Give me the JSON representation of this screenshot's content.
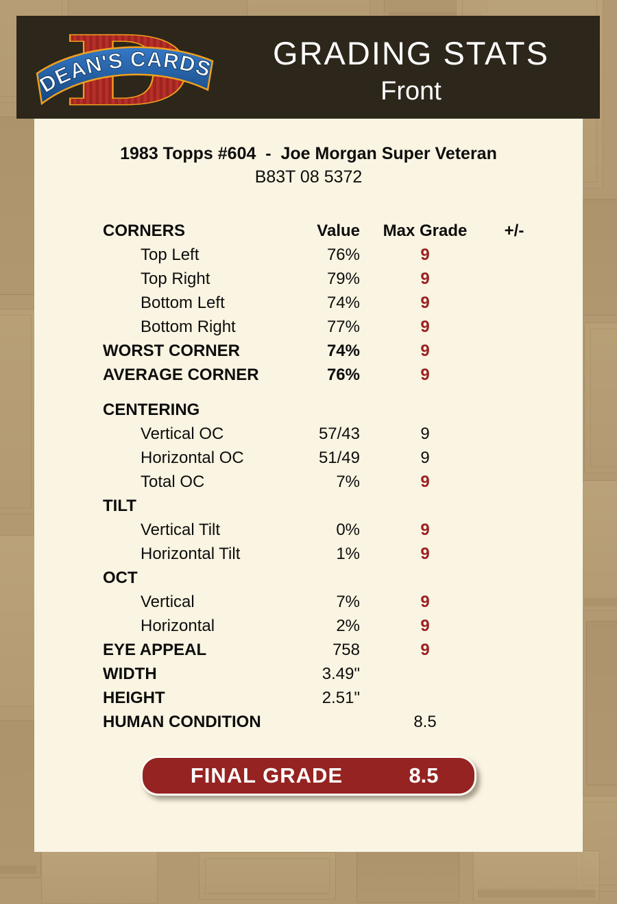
{
  "header": {
    "logo": {
      "d": "D",
      "banner": "DEAN'S CARDS"
    },
    "title": "GRADING STATS",
    "side": "Front"
  },
  "card": {
    "title": "1983 Topps #604  -  Joe Morgan Super Veteran",
    "code": "B83T 08 5372"
  },
  "table": {
    "header": {
      "label": "CORNERS",
      "value": "Value",
      "grade": "Max Grade",
      "plus_minus": "+/-"
    },
    "rows": [
      {
        "label": "Top Left",
        "value": "76%",
        "grade": "9",
        "indent": true,
        "grade_red": true
      },
      {
        "label": "Top Right",
        "value": "79%",
        "grade": "9",
        "indent": true,
        "grade_red": true
      },
      {
        "label": "Bottom Left",
        "value": "74%",
        "grade": "9",
        "indent": true,
        "grade_red": true
      },
      {
        "label": "Bottom Right",
        "value": "77%",
        "grade": "9",
        "indent": true,
        "grade_red": true
      },
      {
        "label": "WORST CORNER",
        "value": "74%",
        "grade": "9",
        "label_bold": true,
        "value_bold": true,
        "grade_red": true
      },
      {
        "label": "AVERAGE CORNER",
        "value": "76%",
        "grade": "9",
        "label_bold": true,
        "value_bold": true,
        "grade_red": true
      },
      {
        "spacer": true
      },
      {
        "label": "CENTERING",
        "label_bold": true
      },
      {
        "label": "Vertical OC",
        "value": "57/43",
        "grade": "9",
        "indent": true,
        "grade_red": false
      },
      {
        "label": "Horizontal OC",
        "value": "51/49",
        "grade": "9",
        "indent": true,
        "grade_red": false
      },
      {
        "label": "Total OC",
        "value": "7%",
        "grade": "9",
        "indent": true,
        "grade_red": true
      },
      {
        "label": "TILT",
        "label_bold": true
      },
      {
        "label": "Vertical Tilt",
        "value": "0%",
        "grade": "9",
        "indent": true,
        "grade_red": true
      },
      {
        "label": "Horizontal Tilt",
        "value": "1%",
        "grade": "9",
        "indent": true,
        "grade_red": true
      },
      {
        "label": "OCT",
        "label_bold": true
      },
      {
        "label": "Vertical",
        "value": "7%",
        "grade": "9",
        "indent": true,
        "grade_red": true
      },
      {
        "label": "Horizontal",
        "value": "2%",
        "grade": "9",
        "indent": true,
        "grade_red": true
      },
      {
        "label": "EYE APPEAL",
        "value": "758",
        "grade": "9",
        "label_bold": true,
        "grade_red": true
      },
      {
        "label": "WIDTH",
        "value": "3.49\"",
        "label_bold": true
      },
      {
        "label": "HEIGHT",
        "value": "2.51\"",
        "label_bold": true
      },
      {
        "label": "HUMAN CONDITION",
        "grade": "8.5",
        "label_bold": true,
        "grade_red": false
      }
    ]
  },
  "final_grade": {
    "label": "FINAL GRADE",
    "value": "8.5"
  },
  "colors": {
    "page_tan": "#b29972",
    "panel_cream": "#faf4e2",
    "header_brown": "#2d261b",
    "accent_red": "#9a2222",
    "button_red": "#952321",
    "text_black": "#0d0d0d"
  }
}
